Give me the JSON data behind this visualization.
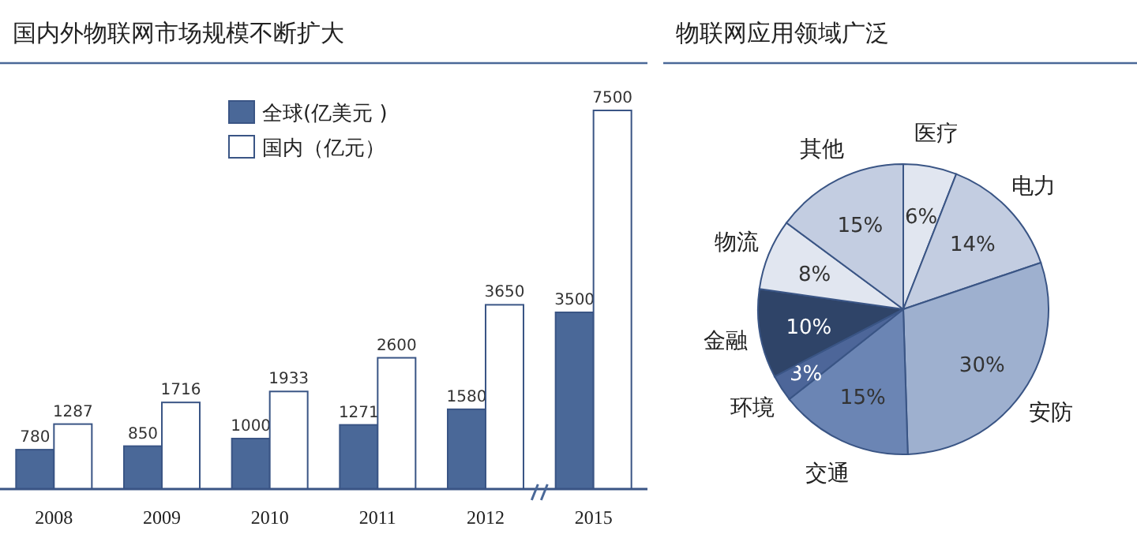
{
  "chart_data": [
    {
      "type": "bar",
      "title": "国内外物联网市场规模不断扩大",
      "categories": [
        "2008",
        "2009",
        "2010",
        "2011",
        "2012",
        "2015"
      ],
      "series": [
        {
          "name": "全球(亿美元 )",
          "color": "#4a6898",
          "values": [
            780,
            850,
            1000,
            1271,
            1580,
            3500
          ]
        },
        {
          "name": "国内（亿元）",
          "color": "#ffffff",
          "values": [
            1287,
            1716,
            1933,
            2600,
            3650,
            7500
          ]
        }
      ],
      "data_labels": true,
      "legend": "top"
    },
    {
      "type": "pie",
      "title": "物联网应用领域广泛",
      "categories": [
        "医疗",
        "电力",
        "安防",
        "交通",
        "环境",
        "金融",
        "物流",
        "其他"
      ],
      "values": [
        6,
        14,
        30,
        15,
        3,
        10,
        8,
        15
      ],
      "value_labels": [
        "6%",
        "14%",
        "30%",
        "15%",
        "3%",
        "10%",
        "8%",
        "15%"
      ],
      "colors": [
        "#e1e6f0",
        "#c3cde1",
        "#9eb0cf",
        "#6b85b4",
        "#4d6699",
        "#2f4468",
        "#e1e6f0",
        "#c3cde1"
      ]
    }
  ]
}
